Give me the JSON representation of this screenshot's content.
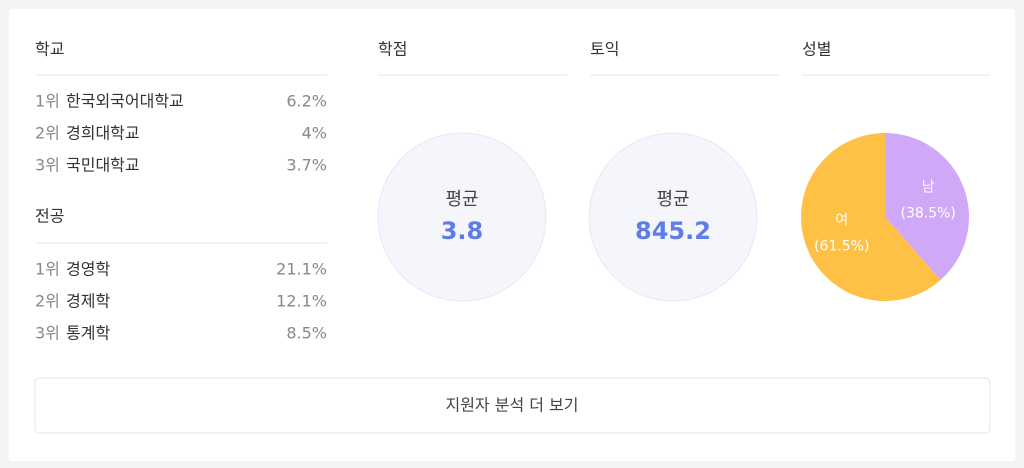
{
  "school": {
    "title": "학교",
    "rows": [
      [
        "1위",
        "한국외국어대학교",
        "6.2%"
      ],
      [
        "2위",
        "경희대학교",
        "4%"
      ],
      [
        "3위",
        "국민대학교",
        "3.7%"
      ]
    ]
  },
  "major": {
    "title": "전공",
    "rows": [
      [
        "1위",
        "경영학",
        "21.1%"
      ],
      [
        "2위",
        "경제학",
        "12.1%"
      ],
      [
        "3위",
        "통계학",
        "8.5%"
      ]
    ]
  },
  "gpa": {
    "title": "학점",
    "label": "평균",
    "value": 3.8
  },
  "toeic": {
    "title": "토익",
    "label": "평균",
    "value": 845.2
  },
  "chart_data": {
    "type": "pie",
    "title": "성별",
    "categories": [
      "남",
      "여"
    ],
    "values": [
      38.5,
      61.5
    ],
    "value_labels": [
      "(38.5%)",
      "(61.5%)"
    ],
    "colors": [
      "#d0a8f8",
      "#ffc145"
    ]
  },
  "button": "지원자 분석 더 보기"
}
